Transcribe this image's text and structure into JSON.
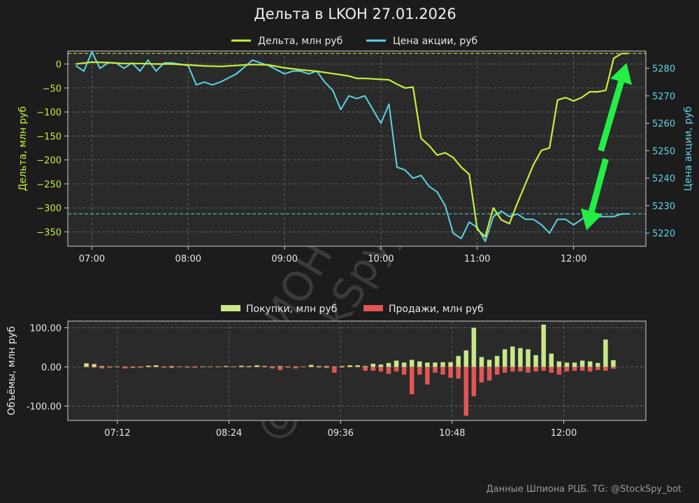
{
  "title": "Дельта в LKOH 27.01.2026",
  "footer": "Данные Шпиона РЦБ. TG: @StockSpy_bot",
  "watermark": [
    "ШПИОН РЦБ",
    "@StockSpy_bot"
  ],
  "colors": {
    "background": "#1c1c1c",
    "plot_bg": "#2a2a2a",
    "delta": "#c5f03c",
    "price": "#5fd3e6",
    "buys": "#c8e68a",
    "sells": "#e25555",
    "arrow": "#22ee44"
  },
  "chart_data": [
    {
      "type": "line",
      "title": "Дельта в LKOH 27.01.2026",
      "xlabel": "",
      "ylabel": "Дельта, млн руб",
      "y2label": "Цена акции, руб",
      "x_ticks": [
        "07:00",
        "08:00",
        "09:00",
        "10:00",
        "11:00",
        "12:00"
      ],
      "y_ticks": [
        0,
        -50,
        -100,
        -150,
        -200,
        -250,
        -300,
        -350
      ],
      "y2_ticks": [
        5280,
        5270,
        5260,
        5250,
        5240,
        5230,
        5220
      ],
      "ylim": [
        -380,
        27
      ],
      "y2lim": [
        5215.2,
        5286.3
      ],
      "grid": true,
      "legend_position": "top-center",
      "hline_delta": 22,
      "hline_price": 5227,
      "arrows": [
        {
          "from": [
            "12:20",
            5247
          ],
          "to": [
            "12:08",
            5221
          ]
        },
        {
          "from": [
            "12:17",
            5250
          ],
          "to": [
            "12:33",
            5282
          ]
        }
      ],
      "series": [
        {
          "name": "Дельта, млн руб",
          "axis": "left",
          "x": [
            "06:50",
            "07:00",
            "07:10",
            "07:20",
            "07:30",
            "07:40",
            "07:50",
            "08:00",
            "08:10",
            "08:20",
            "08:30",
            "08:40",
            "08:50",
            "09:00",
            "09:10",
            "09:20",
            "09:30",
            "09:40",
            "09:45",
            "09:50",
            "10:00",
            "10:05",
            "10:10",
            "10:15",
            "10:20",
            "10:25",
            "10:30",
            "10:35",
            "10:40",
            "10:45",
            "10:50",
            "10:55",
            "11:00",
            "11:05",
            "11:10",
            "11:15",
            "11:20",
            "11:25",
            "11:30",
            "11:35",
            "11:40",
            "11:45",
            "11:50",
            "11:55",
            "12:00",
            "12:05",
            "12:10",
            "12:15",
            "12:20",
            "12:25",
            "12:30",
            "12:34"
          ],
          "values": [
            0,
            4,
            3,
            1,
            1,
            0,
            0,
            -2,
            -4,
            -5,
            -3,
            -1,
            -2,
            -8,
            -12,
            -15,
            -20,
            -25,
            -30,
            -30,
            -32,
            -33,
            -42,
            -50,
            -48,
            -155,
            -170,
            -190,
            -185,
            -195,
            -215,
            -230,
            -345,
            -360,
            -300,
            -325,
            -333,
            -290,
            -250,
            -210,
            -180,
            -175,
            -75,
            -70,
            -77,
            -70,
            -58,
            -58,
            -55,
            12,
            22,
            22
          ]
        },
        {
          "name": "Цена акции, руб",
          "axis": "right",
          "x": [
            "06:50",
            "06:55",
            "07:00",
            "07:05",
            "07:10",
            "07:15",
            "07:20",
            "07:25",
            "07:30",
            "07:35",
            "07:40",
            "07:45",
            "07:50",
            "08:00",
            "08:05",
            "08:10",
            "08:15",
            "08:20",
            "08:30",
            "08:40",
            "08:45",
            "08:50",
            "09:00",
            "09:05",
            "09:10",
            "09:15",
            "09:20",
            "09:25",
            "09:30",
            "09:35",
            "09:40",
            "09:45",
            "09:50",
            "09:55",
            "10:00",
            "10:05",
            "10:10",
            "10:15",
            "10:20",
            "10:25",
            "10:30",
            "10:35",
            "10:40",
            "10:45",
            "10:50",
            "10:55",
            "11:00",
            "11:05",
            "11:10",
            "11:15",
            "11:20",
            "11:25",
            "11:30",
            "11:35",
            "11:40",
            "11:45",
            "11:50",
            "11:55",
            "12:00",
            "12:05",
            "12:10",
            "12:15",
            "12:20",
            "12:25",
            "12:30",
            "12:35"
          ],
          "values": [
            5281,
            5279,
            5286,
            5280,
            5282,
            5282,
            5280,
            5282,
            5279,
            5283,
            5279,
            5282,
            5282,
            5281,
            5274,
            5275,
            5274,
            5275,
            5278,
            5283,
            5282,
            5281,
            5278,
            5279,
            5279,
            5278,
            5279,
            5275,
            5272,
            5265,
            5270,
            5269,
            5270,
            5265,
            5260,
            5267,
            5244,
            5243,
            5240,
            5241,
            5237,
            5235,
            5230,
            5220,
            5218,
            5224,
            5222,
            5217,
            5226,
            5228,
            5226,
            5227,
            5225,
            5225,
            5223,
            5220,
            5225,
            5225,
            5223,
            5225,
            5228,
            5226,
            5226,
            5226,
            5227,
            5227
          ]
        }
      ]
    },
    {
      "type": "bar",
      "xlabel": "",
      "ylabel": "Объёмы, млн руб",
      "x_ticks": [
        "07:12",
        "08:24",
        "09:36",
        "10:48",
        "12:00"
      ],
      "y_ticks": [
        100.0,
        0.0,
        -100.0
      ],
      "y_tick_labels": [
        "100.00",
        "0.00",
        "-100.00"
      ],
      "ylim": [
        -137,
        117
      ],
      "grid": true,
      "legend_position": "top-center",
      "series": [
        {
          "name": "Покупки, млн руб",
          "x": [
            "06:52",
            "06:57",
            "07:02",
            "07:07",
            "07:12",
            "07:17",
            "07:22",
            "07:27",
            "07:32",
            "07:37",
            "07:42",
            "07:47",
            "07:52",
            "07:57",
            "08:02",
            "08:07",
            "08:12",
            "08:17",
            "08:22",
            "08:27",
            "08:32",
            "08:37",
            "08:42",
            "08:47",
            "08:52",
            "08:57",
            "09:02",
            "09:07",
            "09:12",
            "09:17",
            "09:22",
            "09:27",
            "09:32",
            "09:37",
            "09:42",
            "09:47",
            "09:52",
            "09:57",
            "10:02",
            "10:07",
            "10:12",
            "10:17",
            "10:22",
            "10:27",
            "10:32",
            "10:37",
            "10:42",
            "10:47",
            "10:52",
            "10:57",
            "11:02",
            "11:07",
            "11:12",
            "11:17",
            "11:22",
            "11:27",
            "11:32",
            "11:37",
            "11:42",
            "11:47",
            "11:52",
            "11:57",
            "12:02",
            "12:07",
            "12:12",
            "12:17",
            "12:22",
            "12:27",
            "12:32"
          ],
          "values": [
            9,
            7,
            2,
            1,
            1,
            1,
            1,
            1,
            3,
            4,
            1,
            2,
            1,
            1,
            1,
            1,
            1,
            1,
            2,
            1,
            3,
            2,
            4,
            2,
            1,
            2,
            1,
            1,
            1,
            5,
            2,
            2,
            1,
            2,
            4,
            4,
            2,
            8,
            6,
            10,
            16,
            11,
            18,
            14,
            11,
            11,
            12,
            12,
            28,
            42,
            100,
            25,
            18,
            28,
            45,
            52,
            48,
            45,
            30,
            108,
            34,
            14,
            11,
            11,
            16,
            14,
            10,
            70,
            17
          ]
        },
        {
          "name": "Продажи, млн руб",
          "x": [
            "06:52",
            "06:57",
            "07:02",
            "07:07",
            "07:12",
            "07:17",
            "07:22",
            "07:27",
            "07:32",
            "07:37",
            "07:42",
            "07:47",
            "07:52",
            "07:57",
            "08:02",
            "08:07",
            "08:12",
            "08:17",
            "08:22",
            "08:27",
            "08:32",
            "08:37",
            "08:42",
            "08:47",
            "08:52",
            "08:57",
            "09:02",
            "09:07",
            "09:12",
            "09:17",
            "09:22",
            "09:27",
            "09:32",
            "09:37",
            "09:42",
            "09:47",
            "09:52",
            "09:57",
            "10:02",
            "10:07",
            "10:12",
            "10:17",
            "10:22",
            "10:27",
            "10:32",
            "10:37",
            "10:42",
            "10:47",
            "10:52",
            "10:57",
            "11:02",
            "11:07",
            "11:12",
            "11:17",
            "11:22",
            "11:27",
            "11:32",
            "11:37",
            "11:42",
            "11:47",
            "11:52",
            "11:57",
            "12:02",
            "12:07",
            "12:12",
            "12:17",
            "12:22",
            "12:27",
            "12:32"
          ],
          "values": [
            -1,
            -2,
            -4,
            -2,
            -1,
            -4,
            -3,
            -2,
            -1,
            -1,
            -2,
            -3,
            -1,
            -2,
            -2,
            -1,
            -1,
            -1,
            -1,
            -1,
            -1,
            -1,
            -1,
            -1,
            -4,
            -8,
            -2,
            -4,
            -1,
            -1,
            -2,
            -3,
            -15,
            -2,
            -1,
            -1,
            -10,
            -10,
            -12,
            -18,
            -12,
            -20,
            -70,
            -20,
            -45,
            -15,
            -20,
            -28,
            -30,
            -125,
            -75,
            -40,
            -35,
            -20,
            -15,
            -12,
            -12,
            -15,
            -12,
            -10,
            -15,
            -20,
            -12,
            -10,
            -10,
            -12,
            -8,
            -10,
            -5
          ]
        }
      ]
    }
  ]
}
